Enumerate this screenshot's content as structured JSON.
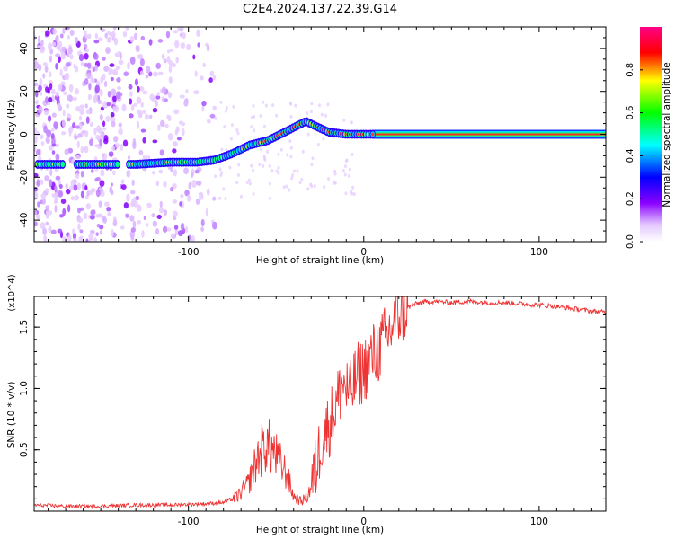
{
  "title": "C2E4.2024.137.22.39.G14",
  "chart_data": [
    {
      "type": "heatmap",
      "title": "",
      "xlabel": "Height of straight line (km)",
      "ylabel": "Frequency (Hz)",
      "xlim": [
        -188,
        138
      ],
      "ylim": [
        -50,
        50
      ],
      "x_ticks": [
        -100,
        0,
        100
      ],
      "y_ticks": [
        -40,
        -20,
        0,
        20,
        40
      ],
      "x_tick_labels": [
        "-100",
        "0",
        "100"
      ],
      "y_tick_labels": [
        "-40",
        "-20",
        "0",
        "20",
        "40"
      ],
      "colorbar": {
        "label": "Normalized spectral amplitude",
        "range": [
          0,
          1
        ],
        "ticks": [
          "0.0",
          "0.2",
          "0.4",
          "0.6",
          "0.8"
        ],
        "tick_values": [
          0,
          0.2,
          0.4,
          0.6,
          0.8
        ],
        "colors": [
          "#ffffff",
          "#a000ff",
          "#0000ff",
          "#00ffff",
          "#00ff00",
          "#ffff00",
          "#ff0000",
          "#ff00aa"
        ]
      },
      "ridge": {
        "x": [
          -188,
          -170,
          -150,
          -130,
          -110,
          -95,
          -85,
          -75,
          -65,
          -55,
          -45,
          -38,
          -33,
          -28,
          -20,
          -10,
          0,
          10,
          138
        ],
        "frequency": [
          -14,
          -14,
          -14,
          -14,
          -13,
          -13,
          -12,
          -9,
          -5,
          -3,
          1,
          4,
          6,
          4,
          1,
          0,
          0,
          0,
          0
        ]
      }
    },
    {
      "type": "line",
      "title": "",
      "xlabel": "Height of straight line (km)",
      "ylabel": "SNR (10 * v/v)",
      "y_scale_label": "(x10^4)",
      "xlim": [
        -188,
        138
      ],
      "ylim": [
        0,
        1.75
      ],
      "x_ticks": [
        -100,
        0,
        100
      ],
      "y_ticks": [
        0.5,
        1.0,
        1.5
      ],
      "x_tick_labels": [
        "-100",
        "0",
        "100"
      ],
      "y_tick_labels": [
        "0.5",
        "1.0",
        "1.5"
      ],
      "series": [
        {
          "name": "SNR",
          "color": "#ee3333",
          "x": [
            -188,
            -170,
            -150,
            -130,
            -110,
            -90,
            -80,
            -72,
            -66,
            -60,
            -56,
            -52,
            -48,
            -44,
            -40,
            -36,
            -32,
            -28,
            -24,
            -20,
            -16,
            -12,
            -8,
            -4,
            0,
            4,
            8,
            12,
            16,
            20,
            24,
            28,
            32,
            40,
            50,
            60,
            70,
            80,
            90,
            100,
            110,
            120,
            130,
            138
          ],
          "y": [
            0.05,
            0.04,
            0.04,
            0.05,
            0.05,
            0.06,
            0.07,
            0.12,
            0.22,
            0.45,
            0.55,
            0.5,
            0.4,
            0.3,
            0.12,
            0.08,
            0.12,
            0.3,
            0.6,
            0.7,
            0.85,
            1.05,
            0.95,
            1.1,
            1.15,
            1.25,
            1.3,
            1.4,
            1.5,
            1.6,
            1.65,
            1.68,
            1.7,
            1.71,
            1.7,
            1.71,
            1.7,
            1.7,
            1.69,
            1.68,
            1.67,
            1.65,
            1.63,
            1.62
          ]
        }
      ]
    }
  ]
}
